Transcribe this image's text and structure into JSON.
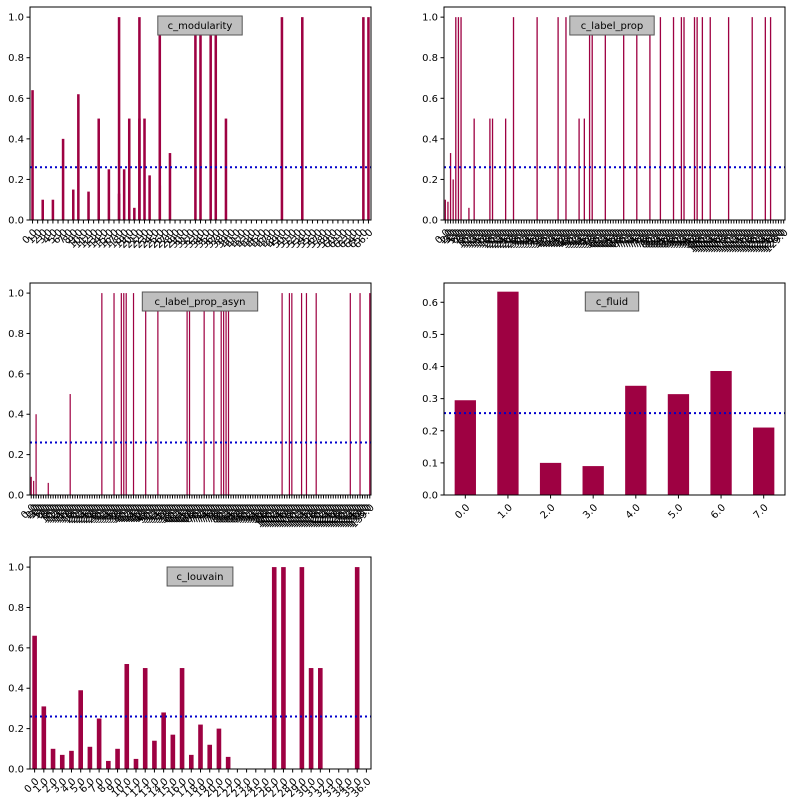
{
  "figure": {
    "background": "#ffffff"
  },
  "style": {
    "bar_color": "#9e0142",
    "line_color": "#0000cc",
    "title_box_fill": "#bfbfbf",
    "title_box_stroke": "#555555"
  },
  "chart_data": [
    {
      "id": "c_modularity",
      "type": "bar",
      "title": "c_modularity",
      "ylim": [
        0,
        1.05
      ],
      "yticks": [
        0.0,
        0.2,
        0.4,
        0.6,
        0.8,
        1.0
      ],
      "threshold": 0.26,
      "label_every": 5,
      "categories": [
        "0.0",
        "1.0",
        "2.0",
        "3.0",
        "4.0",
        "5.0",
        "6.0",
        "7.0",
        "8.0",
        "9.0",
        "10.0",
        "11.0",
        "12.0",
        "13.0",
        "14.0",
        "15.0",
        "16.0",
        "17.0",
        "18.0",
        "19.0",
        "20.0",
        "21.0",
        "22.0",
        "23.0",
        "24.0",
        "25.0",
        "26.0",
        "27.0",
        "28.0",
        "29.0",
        "30.0",
        "31.0",
        "32.0",
        "33.0",
        "34.0",
        "35.0",
        "36.0",
        "37.0",
        "38.0",
        "39.0",
        "40.0",
        "41.0",
        "42.0",
        "43.0",
        "44.0",
        "45.0",
        "46.0",
        "47.0",
        "48.0",
        "49.0",
        "50.0",
        "51.0",
        "52.0",
        "53.0",
        "54.0",
        "55.0",
        "56.0",
        "57.0",
        "58.0",
        "59.0",
        "60.0",
        "61.0",
        "62.0",
        "63.0",
        "64.0",
        "65.0",
        "66.0"
      ],
      "values": [
        0.64,
        0,
        0.1,
        0,
        0.1,
        0,
        0.4,
        0,
        0.15,
        0.62,
        0,
        0.14,
        0,
        0.5,
        0,
        0.25,
        0,
        0.13,
        0,
        0.5,
        0,
        0.5,
        0,
        0.22,
        0,
        0.17,
        0,
        0.33,
        0,
        0,
        0,
        0,
        0,
        0,
        0,
        0,
        0,
        0,
        0,
        0,
        0,
        0,
        0,
        0,
        0,
        0,
        0,
        0,
        0,
        0,
        0,
        0,
        0,
        0,
        0,
        0,
        0,
        0,
        0,
        0,
        0,
        0,
        0,
        0,
        0,
        1.0,
        1.0
      ],
      "extra_bars": [
        {
          "index": 17,
          "value": 1.0
        },
        {
          "index": 18,
          "value": 0.25
        },
        {
          "index": 20,
          "value": 0.06
        },
        {
          "index": 21,
          "value": 1.0
        },
        {
          "index": 22,
          "value": 0.5
        },
        {
          "index": 25,
          "value": 1.0
        },
        {
          "index": 32,
          "value": 1.0
        },
        {
          "index": 33,
          "value": 1.0
        },
        {
          "index": 35,
          "value": 1.0
        },
        {
          "index": 36,
          "value": 1.0
        },
        {
          "index": 38,
          "value": 0.5
        },
        {
          "index": 49,
          "value": 1.0
        },
        {
          "index": 53,
          "value": 1.0
        }
      ]
    },
    {
      "id": "c_label_prop",
      "type": "bar",
      "title": "c_label_prop",
      "ylim": [
        0,
        1.05
      ],
      "yticks": [
        0.0,
        0.2,
        0.4,
        0.6,
        0.8,
        1.0
      ],
      "threshold": 0.26,
      "n": 130,
      "label_every": 1,
      "spikes": [
        {
          "index": 0,
          "value": 0.1
        },
        {
          "index": 1,
          "value": 0.09
        },
        {
          "index": 2,
          "value": 0.33
        },
        {
          "index": 3,
          "value": 0.2
        },
        {
          "index": 4,
          "value": 1.0
        },
        {
          "index": 5,
          "value": 1.0
        },
        {
          "index": 6,
          "value": 1.0
        },
        {
          "index": 9,
          "value": 0.06
        },
        {
          "index": 11,
          "value": 0.5
        },
        {
          "index": 17,
          "value": 0.5
        },
        {
          "index": 18,
          "value": 0.5
        },
        {
          "index": 23,
          "value": 0.5
        },
        {
          "index": 26,
          "value": 1.0
        },
        {
          "index": 35,
          "value": 1.0
        },
        {
          "index": 43,
          "value": 1.0
        },
        {
          "index": 46,
          "value": 1.0
        },
        {
          "index": 51,
          "value": 0.5
        },
        {
          "index": 53,
          "value": 0.5
        },
        {
          "index": 55,
          "value": 1.0
        },
        {
          "index": 56,
          "value": 1.0
        },
        {
          "index": 61,
          "value": 1.0
        },
        {
          "index": 68,
          "value": 1.0
        },
        {
          "index": 73,
          "value": 1.0
        },
        {
          "index": 78,
          "value": 1.0
        },
        {
          "index": 82,
          "value": 1.0
        },
        {
          "index": 87,
          "value": 1.0
        },
        {
          "index": 90,
          "value": 1.0
        },
        {
          "index": 91,
          "value": 1.0
        },
        {
          "index": 95,
          "value": 1.0
        },
        {
          "index": 96,
          "value": 1.0
        },
        {
          "index": 98,
          "value": 1.0
        },
        {
          "index": 101,
          "value": 1.0
        },
        {
          "index": 108,
          "value": 1.0
        },
        {
          "index": 117,
          "value": 1.0
        },
        {
          "index": 122,
          "value": 1.0
        },
        {
          "index": 124,
          "value": 1.0
        }
      ]
    },
    {
      "id": "c_label_prop_asyn",
      "type": "bar",
      "title": "c_label_prop_asyn",
      "ylim": [
        0,
        1.05
      ],
      "yticks": [
        0.0,
        0.2,
        0.4,
        0.6,
        0.8,
        1.0
      ],
      "threshold": 0.26,
      "n": 140,
      "label_every": 1,
      "spikes": [
        {
          "index": 0,
          "value": 0.09
        },
        {
          "index": 1,
          "value": 0.07
        },
        {
          "index": 2,
          "value": 0.4
        },
        {
          "index": 7,
          "value": 0.06
        },
        {
          "index": 16,
          "value": 0.5
        },
        {
          "index": 29,
          "value": 1.0
        },
        {
          "index": 34,
          "value": 1.0
        },
        {
          "index": 37,
          "value": 1.0
        },
        {
          "index": 38,
          "value": 1.0
        },
        {
          "index": 39,
          "value": 1.0
        },
        {
          "index": 42,
          "value": 1.0
        },
        {
          "index": 47,
          "value": 1.0
        },
        {
          "index": 52,
          "value": 1.0
        },
        {
          "index": 64,
          "value": 1.0
        },
        {
          "index": 65,
          "value": 1.0
        },
        {
          "index": 71,
          "value": 1.0
        },
        {
          "index": 75,
          "value": 1.0
        },
        {
          "index": 78,
          "value": 1.0
        },
        {
          "index": 79,
          "value": 1.0
        },
        {
          "index": 80,
          "value": 1.0
        },
        {
          "index": 81,
          "value": 1.0
        },
        {
          "index": 103,
          "value": 1.0
        },
        {
          "index": 106,
          "value": 1.0
        },
        {
          "index": 107,
          "value": 1.0
        },
        {
          "index": 111,
          "value": 1.0
        },
        {
          "index": 113,
          "value": 1.0
        },
        {
          "index": 117,
          "value": 1.0
        },
        {
          "index": 131,
          "value": 1.0
        },
        {
          "index": 135,
          "value": 1.0
        },
        {
          "index": 139,
          "value": 1.0
        }
      ]
    },
    {
      "id": "c_fluid",
      "type": "bar",
      "title": "c_fluid",
      "ylim": [
        0,
        0.66
      ],
      "yticks": [
        0.0,
        0.1,
        0.2,
        0.3,
        0.4,
        0.5,
        0.6
      ],
      "threshold": 0.255,
      "label_every": 1,
      "categories": [
        "0.0",
        "1.0",
        "2.0",
        "3.0",
        "4.0",
        "5.0",
        "6.0",
        "7.0"
      ],
      "values": [
        0.295,
        0.633,
        0.1,
        0.09,
        0.34,
        0.314,
        0.386,
        0.21
      ]
    },
    {
      "id": "c_louvain",
      "type": "bar",
      "title": "c_louvain",
      "ylim": [
        0,
        1.05
      ],
      "yticks": [
        0.0,
        0.2,
        0.4,
        0.6,
        0.8,
        1.0
      ],
      "threshold": 0.26,
      "label_every": 1,
      "categories": [
        "0.0",
        "1.0",
        "2.0",
        "3.0",
        "4.0",
        "5.0",
        "6.0",
        "7.0",
        "8.0",
        "9.0",
        "10.0",
        "11.0",
        "12.0",
        "13.0",
        "14.0",
        "15.0",
        "16.0",
        "17.0",
        "18.0",
        "19.0",
        "20.0",
        "21.0",
        "22.0",
        "23.0",
        "24.0",
        "25.0",
        "26.0",
        "27.0",
        "28.0",
        "29.0",
        "30.0",
        "31.0",
        "32.0",
        "33.0",
        "34.0",
        "35.0",
        "36.0"
      ],
      "tick_text": [
        "0.0",
        "1.0",
        "2.0",
        "3.0",
        "4.0",
        "5.0",
        "6.0",
        "7.0",
        "8.0",
        "9.0",
        "10.0",
        "11.0",
        "12.0",
        "13.0",
        "14.0",
        "15.0",
        "16.0",
        "17.0",
        "18.0",
        "19.0",
        "20.0",
        "21.0",
        "22.0",
        "23.0",
        "24.0",
        "25.0",
        "26.0",
        "27.0",
        "28.0",
        "29.0",
        "30.0",
        "31.0",
        "32.0",
        "33.0",
        "34.0",
        "35.0",
        "36.0"
      ],
      "values": [
        0.66,
        0.31,
        0.1,
        0.07,
        0.09,
        0.39,
        0.11,
        0.25,
        0.04,
        0.1,
        0.52,
        0.05,
        0.5,
        0.14,
        0.28,
        0.17,
        0.5,
        0.07,
        0.22,
        0.12,
        0.2,
        0.06,
        0,
        0,
        0,
        0,
        1.0,
        1.0,
        0,
        1.0,
        0.5,
        0.5,
        0,
        0,
        0,
        1.0,
        0
      ]
    }
  ]
}
